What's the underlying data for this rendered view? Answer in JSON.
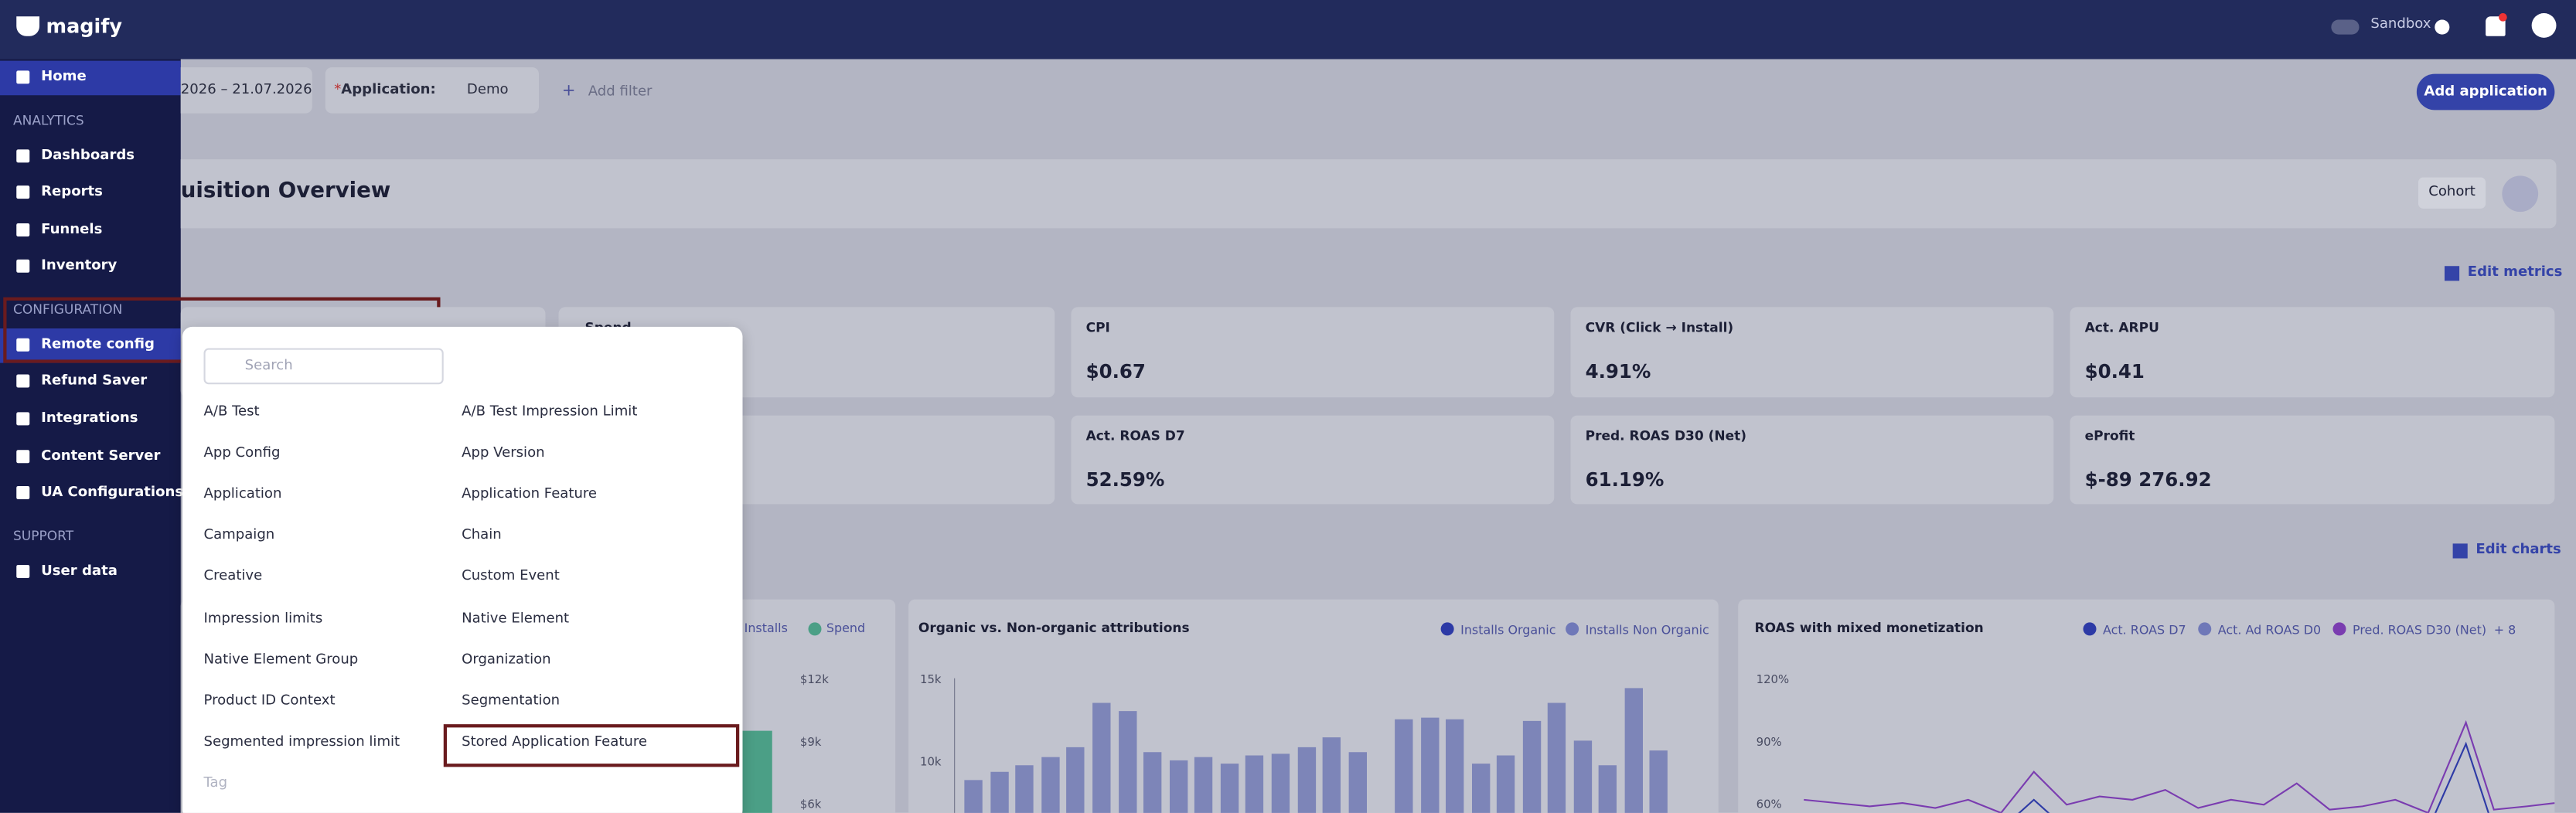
{
  "topbar": {
    "logo": "magify",
    "sandbox": "Sandbox"
  },
  "sidebar": {
    "home": "Home",
    "analytics_heading": "ANALYTICS",
    "analytics": [
      "Dashboards",
      "Reports",
      "Funnels",
      "Inventory"
    ],
    "configuration_heading": "CONFIGURATION",
    "configuration": [
      "Remote config",
      "Refund Saver",
      "Integrations",
      "Content Server",
      "UA Configurations"
    ],
    "support_heading": "SUPPORT",
    "support": [
      "User data"
    ]
  },
  "filters": {
    "date": "2026 – 21.07.2026",
    "application_label": "Application:",
    "application_value": "Demo",
    "add_filter": "Add filter",
    "add_application": "Add application"
  },
  "header": {
    "title": "uisition Overview",
    "cohort": "Cohort",
    "edit_metrics": "Edit metrics",
    "edit_charts": "Edit charts"
  },
  "metrics": [
    {
      "label": "Spend"
    },
    {
      "label": "CPI",
      "value": "$0.67"
    },
    {
      "label": "CVR (Click → Install)",
      "value": "4.91%"
    },
    {
      "label": "Act. ARPU",
      "value": "$0.41"
    },
    {
      "label": "Act. ROAS D7",
      "value": "52.59%"
    },
    {
      "label": "Pred. ROAS D30 (Net)",
      "value": "61.19%"
    },
    {
      "label": "eProfit",
      "value": "$-89 276.92"
    }
  ],
  "charts": [
    {
      "legend": [
        "Installs",
        "Spend"
      ],
      "ticks": [
        "$12k",
        "$9k",
        "$6k"
      ]
    },
    {
      "title": "Organic vs. Non-organic attributions",
      "legend": [
        "Installs Organic",
        "Installs Non Organic"
      ],
      "ticks": [
        "15k",
        "10k"
      ]
    },
    {
      "title": "ROAS with mixed monetization",
      "legend": [
        "Act. ROAS D7",
        "Act. Ad ROAS D0",
        "Pred. ROAS D30 (Net)"
      ],
      "more": "+ 8",
      "ticks": [
        "120%",
        "90%",
        "60%"
      ]
    }
  ],
  "dropdown": {
    "search": "Search",
    "left": [
      "A/B Test",
      "App Config",
      "Application",
      "Campaign",
      "Creative",
      "Impression limits",
      "Native Element Group",
      "Product ID Context",
      "Segmented impression limit",
      "Tag"
    ],
    "right": [
      "A/B Test Impression Limit",
      "App Version",
      "Application Feature",
      "Chain",
      "Custom Event",
      "Native Element",
      "Organization",
      "Segmentation",
      "Stored Application Feature"
    ]
  }
}
